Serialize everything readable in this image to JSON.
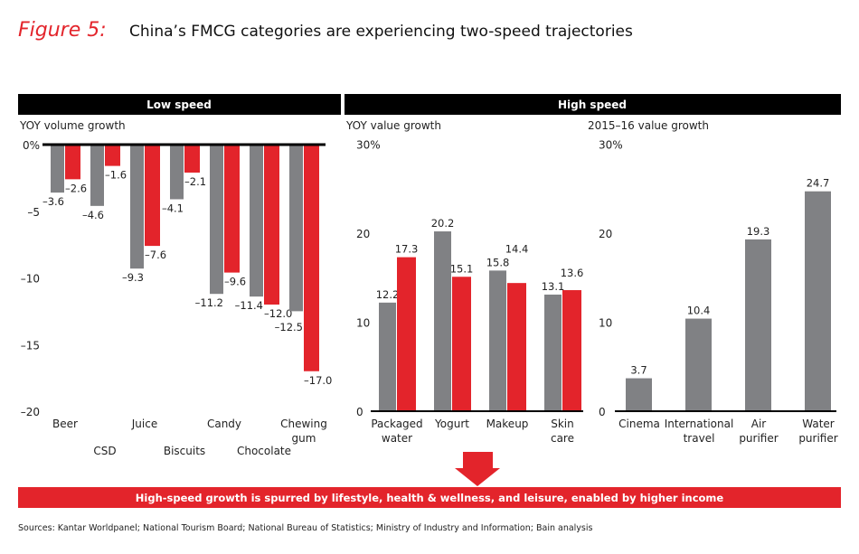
{
  "figure_label": "Figure 5:",
  "title": "China’s FMCG categories are experiencing two-speed trajectories",
  "colors": {
    "gray": "#808184",
    "red": "#e3242b",
    "header": "#000000"
  },
  "footer_banner": "High-speed growth is spurred by lifestyle, health & wellness, and leisure, enabled by higher income",
  "sources": "Sources: Kantar Worldpanel; National Tourism Board; National Bureau of Statistics; Ministry of Industry and Information; Bain analysis",
  "chart_data": [
    {
      "type": "bar",
      "header": "Low speed",
      "ylabel": "YOY volume growth",
      "ylim": [
        -20,
        0
      ],
      "yticks": [
        "0%",
        "–5",
        "–10",
        "–15",
        "–20"
      ],
      "categories": [
        "Beer",
        "CSD",
        "Juice",
        "Biscuits",
        "Candy",
        "Chocolate",
        "Chewing gum"
      ],
      "series": [
        {
          "color": "gray",
          "values": [
            -3.6,
            -4.6,
            -9.3,
            -4.1,
            -11.2,
            -11.4,
            -12.5
          ],
          "labels": [
            "–3.6",
            "–4.6",
            "–9.3",
            "–4.1",
            "–11.2",
            "–11.4",
            "–12.5"
          ]
        },
        {
          "color": "red",
          "values": [
            -2.6,
            -1.6,
            -7.6,
            -2.1,
            -9.6,
            -12.0,
            -17.0
          ],
          "labels": [
            "–2.6",
            "–1.6",
            "–7.6",
            "–2.1",
            "–9.6",
            "–12.0",
            "–17.0"
          ]
        }
      ]
    },
    {
      "type": "bar",
      "header": "High speed",
      "ylabel": "YOY value growth",
      "ylim": [
        0,
        30
      ],
      "yticks": [
        "30%",
        "20",
        "10",
        "0"
      ],
      "categories": [
        "Packaged water",
        "Yogurt",
        "Makeup",
        "Skin care"
      ],
      "series": [
        {
          "color": "gray",
          "values": [
            12.2,
            20.2,
            15.8,
            13.1
          ],
          "labels": [
            "12.2",
            "20.2",
            "15.8",
            "13.1"
          ]
        },
        {
          "color": "red",
          "values": [
            17.3,
            15.1,
            14.4,
            13.6
          ],
          "labels": [
            "17.3",
            "15.1",
            "14.4",
            "13.6"
          ]
        }
      ]
    },
    {
      "type": "bar",
      "ylabel": "2015–16 value growth",
      "ylim": [
        0,
        30
      ],
      "yticks": [
        "30%",
        "20",
        "10",
        "0"
      ],
      "categories": [
        "Cinema",
        "International travel",
        "Air purifier",
        "Water purifier"
      ],
      "series": [
        {
          "color": "gray",
          "values": [
            3.7,
            10.4,
            19.3,
            24.7
          ],
          "labels": [
            "3.7",
            "10.4",
            "19.3",
            "24.7"
          ]
        }
      ]
    }
  ]
}
